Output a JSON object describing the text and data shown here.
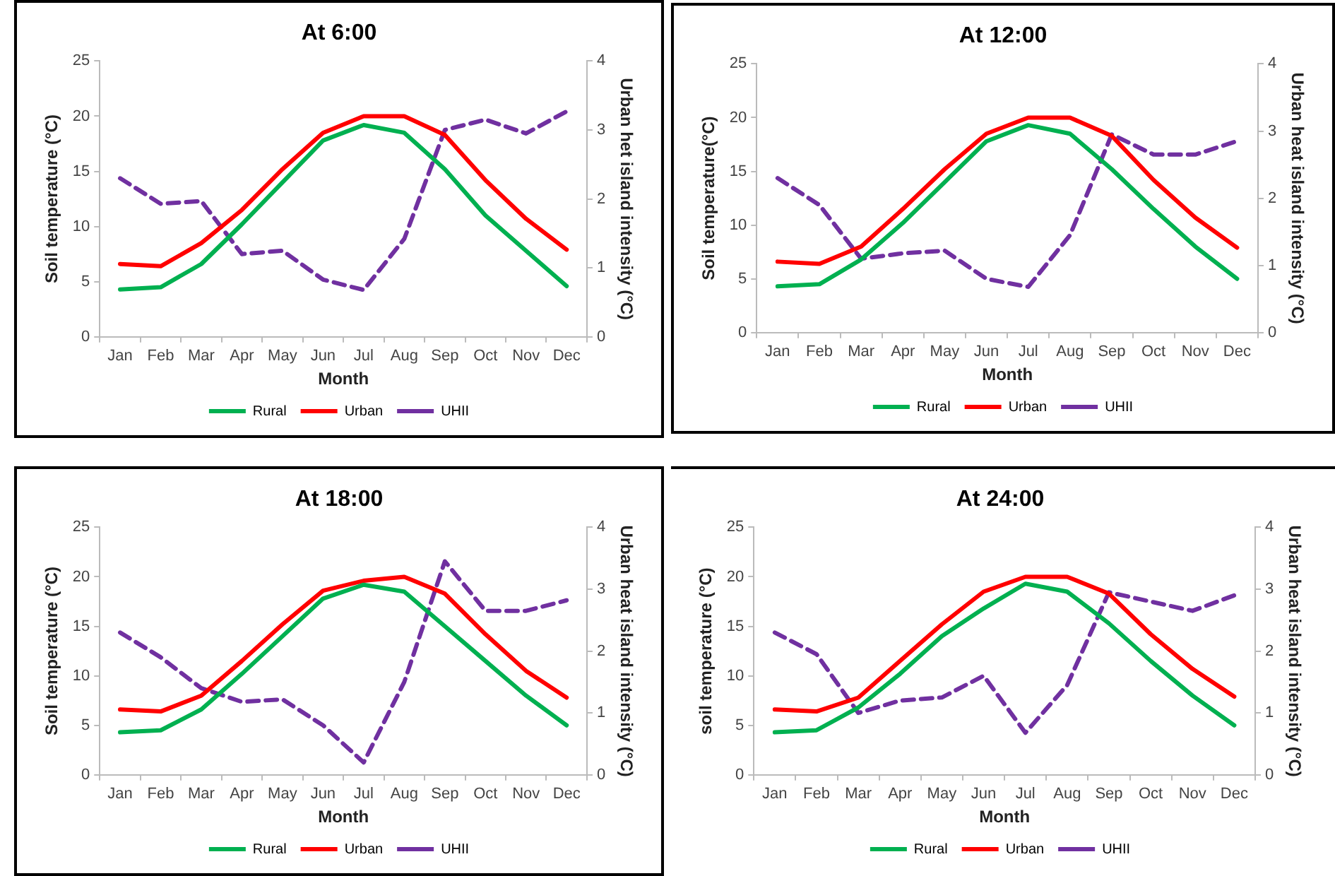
{
  "chart_data": [
    {
      "type": "line",
      "title": "At 6:00",
      "xlabel": "Month",
      "ylabel": "Soil temperature (°C)",
      "y2label": "Urban het island intensity (°C)",
      "categories": [
        "Jan",
        "Feb",
        "Mar",
        "Apr",
        "May",
        "Jun",
        "Jul",
        "Aug",
        "Sep",
        "Oct",
        "Nov",
        "Dec"
      ],
      "ylim": [
        0,
        25
      ],
      "yticks": [
        0,
        5,
        10,
        15,
        20,
        25
      ],
      "y2lim": [
        0,
        4
      ],
      "y2ticks": [
        0,
        1,
        2,
        3,
        4
      ],
      "legend": "bottom",
      "marker": "none",
      "series": [
        {
          "name": "Rural",
          "color": "#00b050",
          "values": [
            4.3,
            4.5,
            6.6,
            10.2,
            14,
            17.8,
            19.2,
            18.5,
            15.2,
            11,
            7.8,
            4.6
          ]
        },
        {
          "name": "Urban",
          "color": "#ff0000",
          "values": [
            6.6,
            6.4,
            8.5,
            11.5,
            15.2,
            18.5,
            20,
            20,
            18.3,
            14.2,
            10.7,
            7.9
          ]
        },
        {
          "name": "UHII",
          "color": "#7030a0",
          "axis": "y2",
          "line_style": "dashed",
          "values": [
            2.3,
            1.93,
            1.97,
            1.2,
            1.25,
            0.83,
            0.68,
            1.42,
            3.0,
            3.15,
            2.95,
            3.27
          ]
        }
      ]
    },
    {
      "type": "line",
      "title": "At 12:00",
      "xlabel": "Month",
      "ylabel": "Soil temperature(°C)",
      "y2label": "Urban heat island intensity (°C)",
      "categories": [
        "Jan",
        "Feb",
        "Mar",
        "Apr",
        "May",
        "Jun",
        "Jul",
        "Aug",
        "Sep",
        "Oct",
        "Nov",
        "Dec"
      ],
      "ylim": [
        0,
        25
      ],
      "yticks": [
        0,
        5,
        10,
        15,
        20,
        25
      ],
      "y2lim": [
        0,
        4
      ],
      "y2ticks": [
        0,
        1,
        2,
        3,
        4
      ],
      "legend": "bottom",
      "marker": "none",
      "series": [
        {
          "name": "Rural",
          "color": "#00b050",
          "values": [
            4.3,
            4.5,
            6.8,
            10.2,
            14,
            17.8,
            19.3,
            18.5,
            15.2,
            11.5,
            8,
            5
          ]
        },
        {
          "name": "Urban",
          "color": "#ff0000",
          "values": [
            6.6,
            6.4,
            8,
            11.5,
            15.2,
            18.5,
            20,
            20,
            18.3,
            14.2,
            10.7,
            7.9
          ]
        },
        {
          "name": "UHII",
          "color": "#7030a0",
          "axis": "y2",
          "line_style": "dashed",
          "values": [
            2.3,
            1.9,
            1.1,
            1.18,
            1.22,
            0.8,
            0.68,
            1.45,
            2.95,
            2.65,
            2.65,
            2.85
          ]
        }
      ]
    },
    {
      "type": "line",
      "title": "At 18:00",
      "xlabel": "Month",
      "ylabel": "Soil temperature (°C)",
      "y2label": "Urban heat island intensity (°C)",
      "categories": [
        "Jan",
        "Feb",
        "Mar",
        "Apr",
        "May",
        "Jun",
        "Jul",
        "Aug",
        "Sep",
        "Oct",
        "Nov",
        "Dec"
      ],
      "ylim": [
        0,
        25
      ],
      "yticks": [
        0,
        5,
        10,
        15,
        20,
        25
      ],
      "y2lim": [
        0,
        4
      ],
      "y2ticks": [
        0,
        1,
        2,
        3,
        4
      ],
      "legend": "bottom",
      "marker": "none",
      "series": [
        {
          "name": "Rural",
          "color": "#00b050",
          "values": [
            4.3,
            4.5,
            6.6,
            10.2,
            14,
            17.8,
            19.2,
            18.5,
            15,
            11.5,
            8,
            5
          ]
        },
        {
          "name": "Urban",
          "color": "#ff0000",
          "values": [
            6.6,
            6.4,
            8,
            11.5,
            15.2,
            18.6,
            19.6,
            20,
            18.3,
            14.2,
            10.5,
            7.8
          ]
        },
        {
          "name": "UHII",
          "color": "#7030a0",
          "axis": "y2",
          "line_style": "dashed",
          "values": [
            2.3,
            1.9,
            1.4,
            1.18,
            1.22,
            0.8,
            0.2,
            1.5,
            3.45,
            2.65,
            2.65,
            2.82
          ]
        }
      ]
    },
    {
      "type": "line",
      "title": "At 24:00",
      "xlabel": "Month",
      "ylabel": "soil temperature (°C)",
      "y2label": "Urban heat island intensity (°C)",
      "categories": [
        "Jan",
        "Feb",
        "Mar",
        "Apr",
        "May",
        "Jun",
        "Jul",
        "Aug",
        "Sep",
        "Oct",
        "Nov",
        "Dec"
      ],
      "ylim": [
        0,
        25
      ],
      "yticks": [
        0,
        5,
        10,
        15,
        20,
        25
      ],
      "y2lim": [
        0,
        4
      ],
      "y2ticks": [
        0,
        1,
        2,
        3,
        4
      ],
      "legend": "bottom",
      "marker": "none",
      "series": [
        {
          "name": "Rural",
          "color": "#00b050",
          "values": [
            4.3,
            4.5,
            6.8,
            10.2,
            14,
            16.8,
            19.3,
            18.5,
            15.3,
            11.5,
            8,
            5
          ]
        },
        {
          "name": "Urban",
          "color": "#ff0000",
          "values": [
            6.6,
            6.4,
            7.8,
            11.5,
            15.2,
            18.5,
            20,
            20,
            18.3,
            14.2,
            10.7,
            7.9
          ]
        },
        {
          "name": "UHII",
          "color": "#7030a0",
          "axis": "y2",
          "line_style": "dashed",
          "values": [
            2.3,
            1.95,
            1.0,
            1.2,
            1.25,
            1.6,
            0.68,
            1.45,
            2.95,
            2.8,
            2.65,
            2.9
          ]
        }
      ]
    }
  ]
}
